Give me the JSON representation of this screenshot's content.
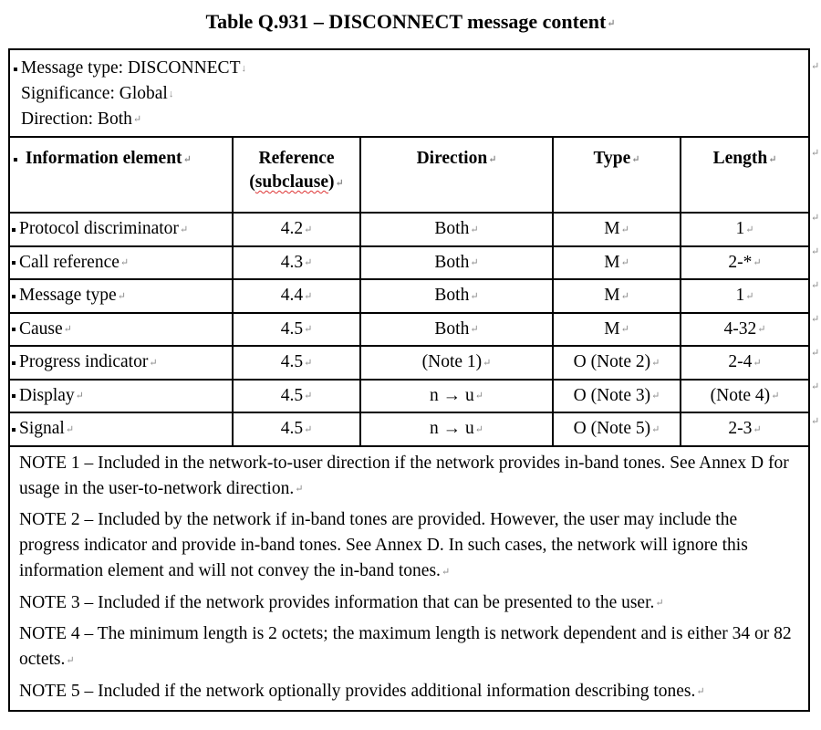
{
  "title": "Table Q.931 – DISCONNECT message content",
  "header_block": {
    "message_type": "Message type: DISCONNECT",
    "significance": "Significance: Global",
    "direction": "Direction: Both"
  },
  "columns": {
    "information_element": "Information element",
    "reference_line1": "Reference",
    "reference_line2_prefix": "(",
    "reference_line2_word": "subclause",
    "reference_line2_suffix": ")",
    "direction": "Direction",
    "type": "Type",
    "length": "Length"
  },
  "rows": [
    {
      "element": "Protocol discriminator",
      "reference": "4.2",
      "direction": "Both",
      "type": "M",
      "length": "1"
    },
    {
      "element": "Call reference",
      "reference": "4.3",
      "direction": "Both",
      "type": "M",
      "length": "2-*"
    },
    {
      "element": "Message type",
      "reference": "4.4",
      "direction": "Both",
      "type": "M",
      "length": "1"
    },
    {
      "element": "Cause",
      "reference": "4.5",
      "direction": "Both",
      "type": "M",
      "length": "4-32"
    },
    {
      "element": "Progress indicator",
      "reference": "4.5",
      "direction": "(Note 1)",
      "type": "O (Note 2)",
      "length": "2-4"
    },
    {
      "element": "Display",
      "reference": "4.5",
      "direction": "n → u",
      "type": "O (Note 3)",
      "length": "(Note 4)"
    },
    {
      "element": "Signal",
      "reference": "4.5",
      "direction": "n → u",
      "type": "O (Note 5)",
      "length": "2-3"
    }
  ],
  "notes": [
    "NOTE 1 – Included in the network-to-user direction if the network provides in-band tones. See Annex D for usage in the user-to-network direction.",
    "NOTE 2 – Included by the network if in-band tones are provided. However, the user may include the progress indicator and provide in-band tones. See Annex D. In such cases, the network will ignore this information element and will not convey the in-band tones.",
    "NOTE 3 – Included if the network provides information that can be presented to the user.",
    "NOTE 4 – The minimum length is 2 octets; the maximum length is network dependent and is either 34 or 82 octets.",
    "NOTE 5 – Included if the network optionally provides additional information describing tones."
  ]
}
